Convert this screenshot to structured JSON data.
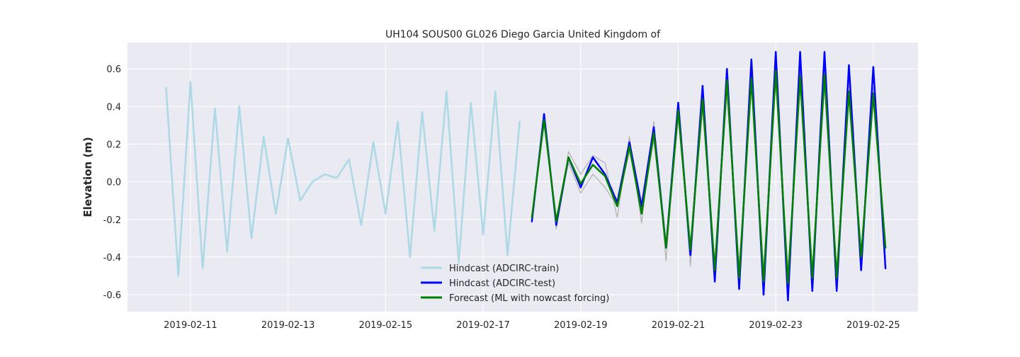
{
  "chart_data": {
    "type": "line",
    "title": "UH104 SOUS00 GL026 Diego Garcia United Kingdom of",
    "xlabel": "",
    "ylabel": "Elevation (m)",
    "xlim": [
      "2019-02-09T17:00",
      "2019-02-25T22:00"
    ],
    "ylim": [
      -0.69,
      0.74
    ],
    "grid": true,
    "legend_position": "bottom-center",
    "x_ticks": [
      "2019-02-11",
      "2019-02-13",
      "2019-02-15",
      "2019-02-17",
      "2019-02-19",
      "2019-02-21",
      "2019-02-23",
      "2019-02-25"
    ],
    "y_ticks": [
      -0.6,
      -0.4,
      -0.2,
      0.0,
      0.2,
      0.4,
      0.6
    ],
    "colors": {
      "background": "#eaeaf2",
      "grid": "#ffffff",
      "train": "#add8e6",
      "test": "#0000ff",
      "forecast": "#008000",
      "gray": "#b0b0b0"
    },
    "series": [
      {
        "name": "Hindcast (ADCIRC-train)",
        "color": "#add8e6",
        "points": [
          [
            "2019-02-10T12:00",
            0.5
          ],
          [
            "2019-02-10T18:00",
            -0.5
          ],
          [
            "2019-02-11T00:00",
            0.53
          ],
          [
            "2019-02-11T06:00",
            -0.46
          ],
          [
            "2019-02-11T12:00",
            0.39
          ],
          [
            "2019-02-11T18:00",
            -0.37
          ],
          [
            "2019-02-12T00:00",
            0.4
          ],
          [
            "2019-02-12T06:00",
            -0.3
          ],
          [
            "2019-02-12T12:00",
            0.24
          ],
          [
            "2019-02-12T18:00",
            -0.17
          ],
          [
            "2019-02-13T00:00",
            0.23
          ],
          [
            "2019-02-13T06:00",
            -0.1
          ],
          [
            "2019-02-13T12:00",
            0.0
          ],
          [
            "2019-02-13T18:00",
            0.04
          ],
          [
            "2019-02-14T00:00",
            0.02
          ],
          [
            "2019-02-14T06:00",
            0.12
          ],
          [
            "2019-02-14T12:00",
            -0.23
          ],
          [
            "2019-02-14T18:00",
            0.21
          ],
          [
            "2019-02-15T00:00",
            -0.17
          ],
          [
            "2019-02-15T06:00",
            0.32
          ],
          [
            "2019-02-15T12:00",
            -0.4
          ],
          [
            "2019-02-15T18:00",
            0.37
          ],
          [
            "2019-02-16T00:00",
            -0.26
          ],
          [
            "2019-02-16T06:00",
            0.48
          ],
          [
            "2019-02-16T12:00",
            -0.43
          ],
          [
            "2019-02-16T18:00",
            0.42
          ],
          [
            "2019-02-17T00:00",
            -0.28
          ],
          [
            "2019-02-17T06:00",
            0.48
          ],
          [
            "2019-02-17T12:00",
            -0.39
          ],
          [
            "2019-02-17T18:00",
            0.32
          ]
        ]
      },
      {
        "name": "",
        "color": "#b0b0b0",
        "points": [
          [
            "2019-02-18T00:00",
            -0.22
          ],
          [
            "2019-02-18T06:00",
            0.34
          ],
          [
            "2019-02-18T12:00",
            -0.25
          ],
          [
            "2019-02-18T18:00",
            0.16
          ],
          [
            "2019-02-19T00:00",
            0.04
          ],
          [
            "2019-02-19T06:00",
            0.14
          ],
          [
            "2019-02-19T12:00",
            0.1
          ],
          [
            "2019-02-19T18:00",
            -0.19
          ],
          [
            "2019-02-20T00:00",
            0.24
          ],
          [
            "2019-02-20T06:00",
            -0.22
          ],
          [
            "2019-02-20T12:00",
            0.32
          ],
          [
            "2019-02-20T18:00",
            -0.42
          ],
          [
            "2019-02-21T00:00",
            0.4
          ],
          [
            "2019-02-21T06:00",
            -0.45
          ],
          [
            "2019-02-21T12:00",
            0.48
          ],
          [
            "2019-02-21T18:00",
            -0.5
          ],
          [
            "2019-02-22T00:00",
            0.55
          ],
          [
            "2019-02-22T06:00",
            -0.52
          ],
          [
            "2019-02-22T12:00",
            0.6
          ],
          [
            "2019-02-22T18:00",
            -0.55
          ],
          [
            "2019-02-23T00:00",
            0.64
          ],
          [
            "2019-02-23T06:00",
            -0.56
          ],
          [
            "2019-02-23T12:00",
            0.62
          ],
          [
            "2019-02-23T18:00",
            -0.54
          ],
          [
            "2019-02-24T00:00",
            0.62
          ],
          [
            "2019-02-24T06:00",
            -0.52
          ],
          [
            "2019-02-24T12:00",
            0.54
          ],
          [
            "2019-02-24T18:00",
            -0.42
          ],
          [
            "2019-02-25T00:00",
            0.5
          ],
          [
            "2019-02-25T06:00",
            -0.4
          ]
        ]
      },
      {
        "name": "",
        "color": "#b0b0b0",
        "points": [
          [
            "2019-02-18T00:00",
            -0.19
          ],
          [
            "2019-02-18T06:00",
            0.3
          ],
          [
            "2019-02-18T12:00",
            -0.19
          ],
          [
            "2019-02-18T18:00",
            0.1
          ],
          [
            "2019-02-19T00:00",
            -0.06
          ],
          [
            "2019-02-19T06:00",
            0.04
          ],
          [
            "2019-02-19T12:00",
            -0.03
          ],
          [
            "2019-02-19T18:00",
            -0.13
          ],
          [
            "2019-02-20T00:00",
            0.16
          ],
          [
            "2019-02-20T06:00",
            -0.14
          ],
          [
            "2019-02-20T12:00",
            0.22
          ],
          [
            "2019-02-20T18:00",
            -0.32
          ],
          [
            "2019-02-21T00:00",
            0.33
          ],
          [
            "2019-02-21T06:00",
            -0.34
          ],
          [
            "2019-02-21T12:00",
            0.38
          ],
          [
            "2019-02-21T18:00",
            -0.42
          ],
          [
            "2019-02-22T00:00",
            0.46
          ],
          [
            "2019-02-22T06:00",
            -0.44
          ],
          [
            "2019-02-22T12:00",
            0.5
          ],
          [
            "2019-02-22T18:00",
            -0.46
          ],
          [
            "2019-02-23T00:00",
            0.52
          ],
          [
            "2019-02-23T06:00",
            -0.46
          ],
          [
            "2019-02-23T12:00",
            0.5
          ],
          [
            "2019-02-23T18:00",
            -0.46
          ],
          [
            "2019-02-24T00:00",
            0.5
          ],
          [
            "2019-02-24T06:00",
            -0.46
          ],
          [
            "2019-02-24T12:00",
            0.44
          ],
          [
            "2019-02-24T18:00",
            -0.36
          ],
          [
            "2019-02-25T00:00",
            0.42
          ],
          [
            "2019-02-25T06:00",
            -0.33
          ]
        ]
      },
      {
        "name": "Hindcast (ADCIRC-test)",
        "color": "#0000ff",
        "points": [
          [
            "2019-02-18T00:00",
            -0.21
          ],
          [
            "2019-02-18T06:00",
            0.36
          ],
          [
            "2019-02-18T12:00",
            -0.23
          ],
          [
            "2019-02-18T18:00",
            0.13
          ],
          [
            "2019-02-19T00:00",
            -0.03
          ],
          [
            "2019-02-19T06:00",
            0.13
          ],
          [
            "2019-02-19T12:00",
            0.04
          ],
          [
            "2019-02-19T18:00",
            -0.11
          ],
          [
            "2019-02-20T00:00",
            0.21
          ],
          [
            "2019-02-20T06:00",
            -0.13
          ],
          [
            "2019-02-20T12:00",
            0.29
          ],
          [
            "2019-02-20T18:00",
            -0.35
          ],
          [
            "2019-02-21T00:00",
            0.42
          ],
          [
            "2019-02-21T06:00",
            -0.39
          ],
          [
            "2019-02-21T12:00",
            0.51
          ],
          [
            "2019-02-21T18:00",
            -0.53
          ],
          [
            "2019-02-22T00:00",
            0.6
          ],
          [
            "2019-02-22T06:00",
            -0.57
          ],
          [
            "2019-02-22T12:00",
            0.65
          ],
          [
            "2019-02-22T18:00",
            -0.6
          ],
          [
            "2019-02-23T00:00",
            0.69
          ],
          [
            "2019-02-23T06:00",
            -0.63
          ],
          [
            "2019-02-23T12:00",
            0.69
          ],
          [
            "2019-02-23T18:00",
            -0.58
          ],
          [
            "2019-02-24T00:00",
            0.69
          ],
          [
            "2019-02-24T06:00",
            -0.58
          ],
          [
            "2019-02-24T12:00",
            0.62
          ],
          [
            "2019-02-24T18:00",
            -0.47
          ],
          [
            "2019-02-25T00:00",
            0.61
          ],
          [
            "2019-02-25T06:00",
            -0.46
          ]
        ]
      },
      {
        "name": "Forecast (ML with nowcast forcing)",
        "color": "#008000",
        "points": [
          [
            "2019-02-18T00:00",
            -0.19
          ],
          [
            "2019-02-18T06:00",
            0.33
          ],
          [
            "2019-02-18T12:00",
            -0.21
          ],
          [
            "2019-02-18T18:00",
            0.13
          ],
          [
            "2019-02-19T00:00",
            -0.01
          ],
          [
            "2019-02-19T06:00",
            0.09
          ],
          [
            "2019-02-19T12:00",
            0.03
          ],
          [
            "2019-02-19T18:00",
            -0.13
          ],
          [
            "2019-02-20T00:00",
            0.19
          ],
          [
            "2019-02-20T06:00",
            -0.17
          ],
          [
            "2019-02-20T12:00",
            0.26
          ],
          [
            "2019-02-20T18:00",
            -0.35
          ],
          [
            "2019-02-21T00:00",
            0.38
          ],
          [
            "2019-02-21T06:00",
            -0.36
          ],
          [
            "2019-02-21T12:00",
            0.44
          ],
          [
            "2019-02-21T18:00",
            -0.47
          ],
          [
            "2019-02-22T00:00",
            0.54
          ],
          [
            "2019-02-22T06:00",
            -0.51
          ],
          [
            "2019-02-22T12:00",
            0.55
          ],
          [
            "2019-02-22T18:00",
            -0.53
          ],
          [
            "2019-02-23T00:00",
            0.59
          ],
          [
            "2019-02-23T06:00",
            -0.54
          ],
          [
            "2019-02-23T12:00",
            0.56
          ],
          [
            "2019-02-23T18:00",
            -0.51
          ],
          [
            "2019-02-24T00:00",
            0.57
          ],
          [
            "2019-02-24T06:00",
            -0.51
          ],
          [
            "2019-02-24T12:00",
            0.48
          ],
          [
            "2019-02-24T18:00",
            -0.4
          ],
          [
            "2019-02-25T00:00",
            0.47
          ],
          [
            "2019-02-25T06:00",
            -0.35
          ]
        ]
      }
    ]
  }
}
